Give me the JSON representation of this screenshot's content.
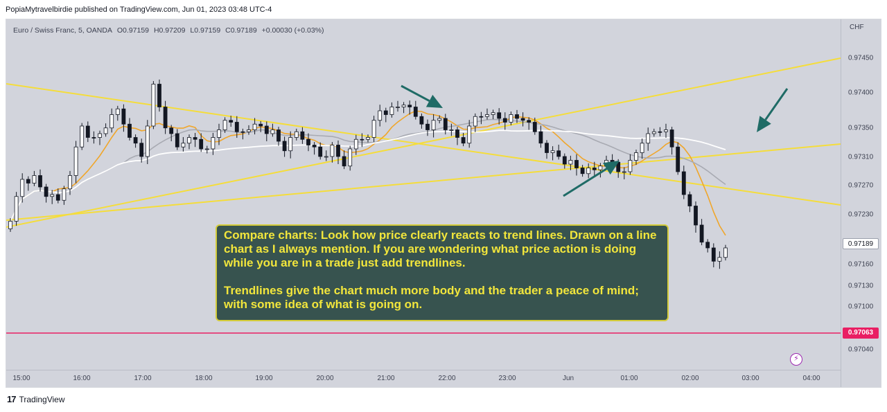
{
  "header": {
    "published_line": "PopiaMytravelbirdie published on TradingView.com, Jun 01, 2023 03:48 UTC-4"
  },
  "legend": {
    "symbol": "Euro / Swiss Franc, 5, OANDA",
    "open": "O0.97159",
    "high": "H0.97209",
    "low": "L0.97159",
    "close": "C0.97189",
    "change": "+0.00030 (+0.03%)"
  },
  "price_axis": {
    "currency": "CHF",
    "ticks": [
      "0.97450",
      "0.97400",
      "0.97350",
      "0.97310",
      "0.97270",
      "0.97230",
      "0.97160",
      "0.97130",
      "0.97100",
      "0.97040"
    ],
    "current_price": "0.97189",
    "level_price": "0.97063"
  },
  "time_axis": {
    "ticks": [
      "15:00",
      "16:00",
      "17:00",
      "18:00",
      "19:00",
      "20:00",
      "21:00",
      "22:00",
      "23:00",
      "Jun",
      "01:00",
      "02:00",
      "03:00",
      "04:00"
    ]
  },
  "annotation": {
    "paragraph1": "Compare charts: Look how price clearly reacts to trend lines. Drawn on a line chart as I always mention. If you are wondering what price action is doing while you are in a trade just add trendlines.",
    "paragraph2": "Trendlines give the chart much more body and the trader a peace of mind; with some idea of what is going on."
  },
  "footer": {
    "brand": "TradingView"
  },
  "colors": {
    "background": "#d2d4dc",
    "trendline": "#f5dd3a",
    "ma_fast": "#f0a62a",
    "ma_mid": "#a8aab2",
    "ma_slow": "#ffffff",
    "arrow": "#1f6b66",
    "level_line": "#e91e63",
    "candle_bull": "#ffffff",
    "candle_bear": "#131722"
  },
  "chart_data": {
    "type": "candlestick",
    "symbol": "EURCHF",
    "timeframe": "5",
    "x_labels": [
      "15:00",
      "16:00",
      "17:00",
      "18:00",
      "19:00",
      "20:00",
      "21:00",
      "22:00",
      "23:00",
      "Jun",
      "01:00",
      "02:00",
      "03:00",
      "04:00"
    ],
    "ylim": [
      0.9702,
      0.9748
    ],
    "horizontal_level": 0.97063,
    "last_price": 0.97189,
    "close_path": [
      0.9722,
      0.9727,
      0.9727,
      0.9725,
      0.9724,
      0.9728,
      0.9734,
      0.9732,
      0.9734,
      0.9736,
      0.9733,
      0.973,
      0.9739,
      0.9734,
      0.9731,
      0.9733,
      0.9731,
      0.9732,
      0.9735,
      0.9733,
      0.9734,
      0.9734,
      0.9733,
      0.9731,
      0.9733,
      0.9732,
      0.973,
      0.9731,
      0.9729,
      0.9732,
      0.9733,
      0.9736,
      0.9736,
      0.9737,
      0.9735,
      0.9734,
      0.9735,
      0.9733,
      0.9732,
      0.9735,
      0.9736,
      0.9735,
      0.9735,
      0.9735,
      0.9733,
      0.9731,
      0.973,
      0.9729,
      0.9728,
      0.9728,
      0.973,
      0.9728,
      0.9729,
      0.9732,
      0.9733,
      0.9734,
      0.9728,
      0.9723,
      0.9719,
      0.9716,
      0.9718
    ]
  }
}
